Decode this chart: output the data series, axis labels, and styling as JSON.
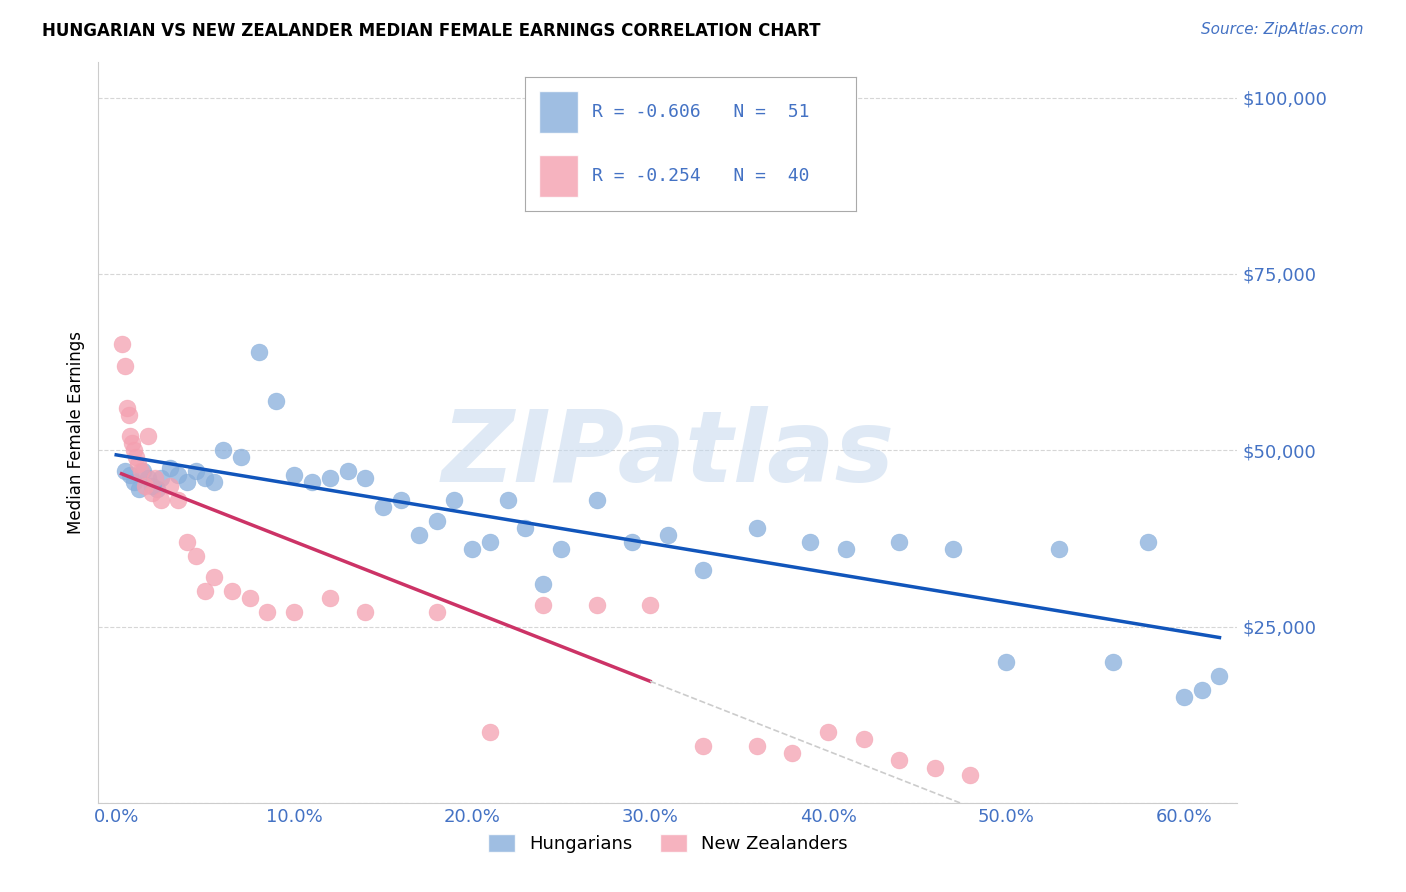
{
  "title": "HUNGARIAN VS NEW ZEALANDER MEDIAN FEMALE EARNINGS CORRELATION CHART",
  "source": "Source: ZipAtlas.com",
  "ylabel": "Median Female Earnings",
  "ytick_vals": [
    0,
    25000,
    50000,
    75000,
    100000
  ],
  "ytick_labels": [
    "",
    "$25,000",
    "$50,000",
    "$75,000",
    "$100,000"
  ],
  "xtick_vals": [
    0,
    10,
    20,
    30,
    40,
    50,
    60
  ],
  "xtick_labels": [
    "0.0%",
    "10.0%",
    "20.0%",
    "30.0%",
    "40.0%",
    "50.0%",
    "60.0%"
  ],
  "ylim": [
    0,
    105000
  ],
  "xlim": [
    -1,
    63
  ],
  "blue_color": "#87AEDB",
  "pink_color": "#F4A0B0",
  "trend_blue": "#1155BB",
  "trend_pink": "#CC3366",
  "trend_dash": "#CCCCCC",
  "legend_R_blue": "R = -0.606",
  "legend_N_blue": "N =  51",
  "legend_R_pink": "R = -0.254",
  "legend_N_pink": "N =  40",
  "watermark": "ZIPatlas",
  "blue_x": [
    0.5,
    0.8,
    1.0,
    1.3,
    1.5,
    1.8,
    2.0,
    2.3,
    2.5,
    3.0,
    3.5,
    4.0,
    4.5,
    5.0,
    5.5,
    6.0,
    7.0,
    8.0,
    9.0,
    10.0,
    11.0,
    12.0,
    13.0,
    14.0,
    15.0,
    16.0,
    17.0,
    18.0,
    19.0,
    20.0,
    21.0,
    22.0,
    23.0,
    24.0,
    25.0,
    27.0,
    29.0,
    31.0,
    33.0,
    36.0,
    39.0,
    41.0,
    44.0,
    47.0,
    50.0,
    53.0,
    56.0,
    58.0,
    60.0,
    61.0,
    62.0
  ],
  "blue_y": [
    47000,
    46500,
    45500,
    44500,
    47000,
    46000,
    45000,
    44500,
    46000,
    47500,
    46500,
    45500,
    47000,
    46000,
    45500,
    50000,
    49000,
    64000,
    57000,
    46500,
    45500,
    46000,
    47000,
    46000,
    42000,
    43000,
    38000,
    40000,
    43000,
    36000,
    37000,
    43000,
    39000,
    31000,
    36000,
    43000,
    37000,
    38000,
    33000,
    39000,
    37000,
    36000,
    37000,
    36000,
    20000,
    36000,
    20000,
    37000,
    15000,
    16000,
    18000
  ],
  "pink_x": [
    0.3,
    0.5,
    0.6,
    0.7,
    0.8,
    0.9,
    1.0,
    1.1,
    1.2,
    1.4,
    1.6,
    1.8,
    2.0,
    2.2,
    2.5,
    3.0,
    3.5,
    4.0,
    4.5,
    5.0,
    5.5,
    6.5,
    7.5,
    8.5,
    10.0,
    12.0,
    14.0,
    18.0,
    21.0,
    24.0,
    27.0,
    30.0,
    33.0,
    36.0,
    38.0,
    40.0,
    42.0,
    44.0,
    46.0,
    48.0
  ],
  "pink_y": [
    65000,
    62000,
    56000,
    55000,
    52000,
    51000,
    50000,
    49000,
    48000,
    47000,
    45000,
    52000,
    44000,
    46000,
    43000,
    45000,
    43000,
    37000,
    35000,
    30000,
    32000,
    30000,
    29000,
    27000,
    27000,
    29000,
    27000,
    27000,
    10000,
    28000,
    28000,
    28000,
    8000,
    8000,
    7000,
    10000,
    9000,
    6000,
    5000,
    4000
  ],
  "pink_solid_end": 30.0,
  "pink_dash_start": 30.0,
  "pink_dash_end": 48.0
}
